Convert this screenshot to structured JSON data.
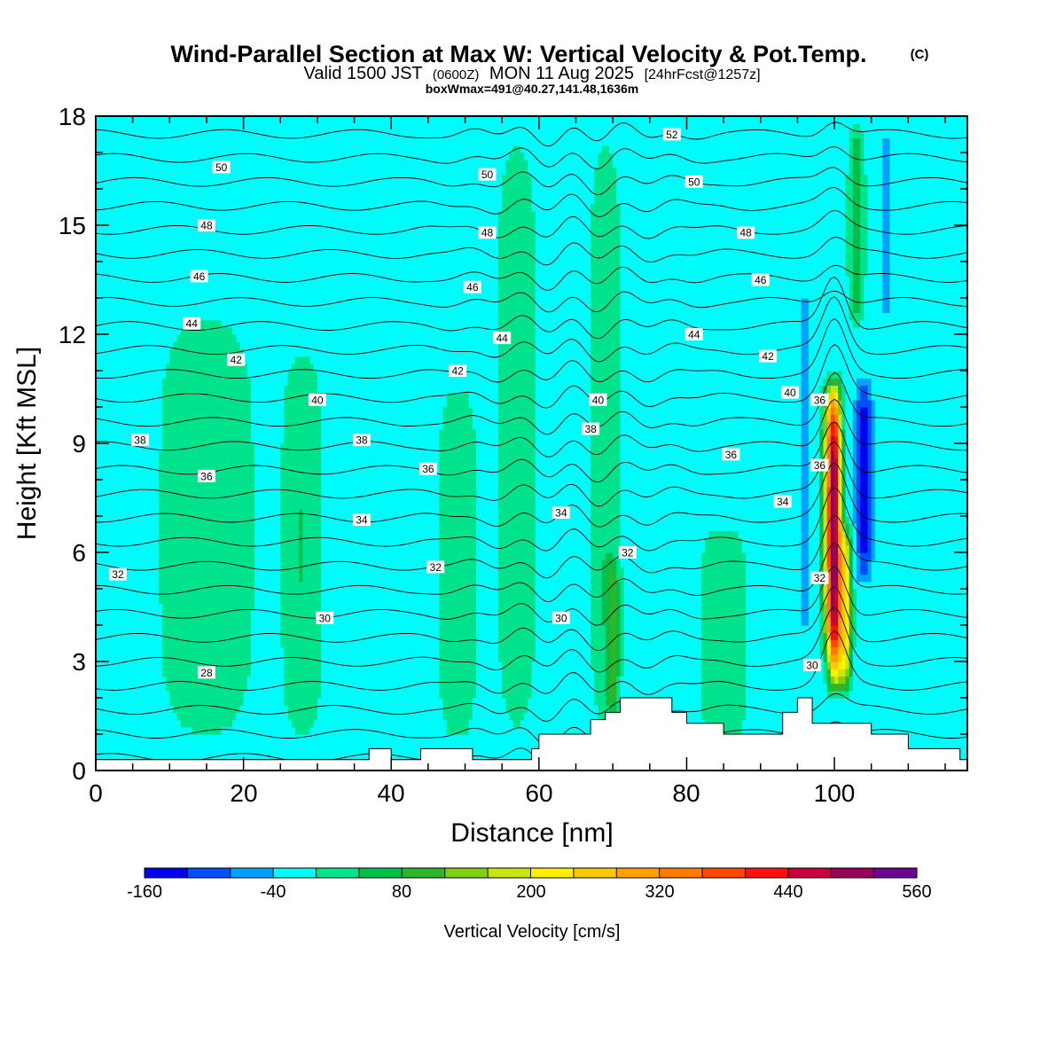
{
  "chart_data": {
    "type": "heatmap",
    "title": "Wind-Parallel Section at Max W: Vertical Velocity & Pot.Temp.",
    "title_mark": "(C)",
    "subtitle_main": "Valid 1500 JST",
    "subtitle_z": "(0600Z)",
    "subtitle_date": "MON 11 Aug 2025",
    "subtitle_fcst": "[24hrFcst@1257z]",
    "subtitle2": "boxWmax=491@40.27,141.48,1636m",
    "xlabel": "Distance [nm]",
    "ylabel": "Height [Kft MSL]",
    "xlim": [
      0,
      118
    ],
    "ylim": [
      0,
      18
    ],
    "x_ticks": [
      "0",
      "20",
      "40",
      "60",
      "80",
      "100"
    ],
    "y_ticks": [
      "0",
      "3",
      "6",
      "9",
      "12",
      "15",
      "18"
    ],
    "colorbar": {
      "label": "Vertical Velocity [cm/s]",
      "tick_labels": [
        "-160",
        "-40",
        "80",
        "200",
        "320",
        "440",
        "560"
      ],
      "min": -160,
      "max": 560,
      "step": 40,
      "colors": [
        "#0000f0",
        "#0050f5",
        "#00a0ff",
        "#00fbfb",
        "#00e38d",
        "#00c04a",
        "#2db62a",
        "#80d010",
        "#c8e610",
        "#fff000",
        "#ffc800",
        "#ffa000",
        "#ff7a00",
        "#ff4800",
        "#ff1010",
        "#c8003c",
        "#96005a",
        "#6e0094"
      ]
    },
    "background_value": -20,
    "w_features": [
      {
        "x": 15,
        "z0": 0.4,
        "z1": 13,
        "w": 40,
        "half_width": 6
      },
      {
        "x": 28,
        "z0": 0.4,
        "z1": 12,
        "w": 40,
        "half_width": 2.5
      },
      {
        "x": 49,
        "z0": 0.4,
        "z1": 11,
        "w": 40,
        "half_width": 2.5
      },
      {
        "x": 57,
        "z0": 0.4,
        "z1": 18,
        "w": 40,
        "half_width": 2.5
      },
      {
        "x": 69,
        "z0": 0.4,
        "z1": 18,
        "w": 40,
        "half_width": 2
      },
      {
        "x": 70,
        "z0": 1,
        "z1": 6,
        "w": 80,
        "half_width": 0.8
      },
      {
        "x": 85,
        "z0": 0.4,
        "z1": 7,
        "w": 40,
        "half_width": 3
      },
      {
        "x": 96,
        "z0": 3,
        "z1": 14,
        "w": -60,
        "half_width": 0.8
      },
      {
        "x": 99,
        "z0": 3,
        "z1": 11,
        "w": 120,
        "half_width": 0.8
      },
      {
        "x": 100,
        "z0": 2,
        "z1": 11,
        "w": 490,
        "half_width": 0.9
      },
      {
        "x": 101.5,
        "z0": 2,
        "z1": 7,
        "w": 220,
        "half_width": 0.8
      },
      {
        "x": 104,
        "z0": 5,
        "z1": 11,
        "w": -160,
        "half_width": 1
      },
      {
        "x": 107,
        "z0": 12,
        "z1": 18,
        "w": -60,
        "half_width": 0.8
      },
      {
        "x": 103,
        "z0": 12,
        "z1": 18,
        "w": 80,
        "half_width": 1
      }
    ],
    "terrain_x": [
      0,
      37,
      37,
      40,
      40,
      44,
      44,
      45,
      45,
      51,
      51,
      59,
      59,
      60,
      60,
      67,
      67,
      69,
      69,
      71,
      71,
      73,
      73,
      78,
      78,
      80,
      80,
      85,
      85,
      93,
      93,
      95,
      95,
      97,
      97,
      102,
      102,
      105,
      105,
      110,
      110,
      117,
      117,
      118
    ],
    "terrain_z": [
      0.3,
      0.3,
      0.6,
      0.6,
      0.3,
      0.3,
      0.6,
      0.6,
      0.6,
      0.6,
      0.3,
      0.3,
      0.6,
      0.6,
      1.0,
      1.0,
      1.4,
      1.4,
      1.6,
      1.6,
      2.0,
      2.0,
      2.0,
      2.0,
      1.6,
      1.6,
      1.3,
      1.3,
      1.0,
      1.0,
      1.6,
      1.6,
      2.0,
      2.0,
      1.3,
      1.3,
      1.3,
      1.3,
      1.0,
      1.0,
      0.6,
      0.6,
      0.3,
      0.3
    ],
    "theta_levels": [
      26,
      27,
      28,
      29,
      30,
      31,
      32,
      33,
      34,
      35,
      36,
      37,
      38,
      39,
      40,
      41,
      42,
      43,
      44,
      45,
      46,
      47,
      48,
      49,
      50,
      51,
      52
    ],
    "theta_labels": [
      {
        "text": "50",
        "x": 17,
        "z": 16.6
      },
      {
        "text": "48",
        "x": 15,
        "z": 15.0
      },
      {
        "text": "46",
        "x": 14,
        "z": 13.6
      },
      {
        "text": "44",
        "x": 13,
        "z": 12.3
      },
      {
        "text": "42",
        "x": 19,
        "z": 11.3
      },
      {
        "text": "40",
        "x": 30,
        "z": 10.2
      },
      {
        "text": "38",
        "x": 6,
        "z": 9.1
      },
      {
        "text": "38",
        "x": 36,
        "z": 9.1
      },
      {
        "text": "36",
        "x": 15,
        "z": 8.1
      },
      {
        "text": "36",
        "x": 45,
        "z": 8.3
      },
      {
        "text": "34",
        "x": 36,
        "z": 6.9
      },
      {
        "text": "32",
        "x": 3,
        "z": 5.4
      },
      {
        "text": "32",
        "x": 46,
        "z": 5.6
      },
      {
        "text": "30",
        "x": 31,
        "z": 4.2
      },
      {
        "text": "30",
        "x": 63,
        "z": 4.2
      },
      {
        "text": "28",
        "x": 15,
        "z": 2.7
      },
      {
        "text": "50",
        "x": 53,
        "z": 16.4
      },
      {
        "text": "48",
        "x": 53,
        "z": 14.8
      },
      {
        "text": "46",
        "x": 51,
        "z": 13.3
      },
      {
        "text": "44",
        "x": 55,
        "z": 11.9
      },
      {
        "text": "42",
        "x": 49,
        "z": 11.0
      },
      {
        "text": "40",
        "x": 68,
        "z": 10.2
      },
      {
        "text": "38",
        "x": 67,
        "z": 9.4
      },
      {
        "text": "34",
        "x": 63,
        "z": 7.1
      },
      {
        "text": "32",
        "x": 72,
        "z": 6.0
      },
      {
        "text": "52",
        "x": 78,
        "z": 17.5
      },
      {
        "text": "50",
        "x": 81,
        "z": 16.2
      },
      {
        "text": "48",
        "x": 88,
        "z": 14.8
      },
      {
        "text": "46",
        "x": 90,
        "z": 13.5
      },
      {
        "text": "44",
        "x": 81,
        "z": 12.0
      },
      {
        "text": "42",
        "x": 91,
        "z": 11.4
      },
      {
        "text": "40",
        "x": 94,
        "z": 10.4
      },
      {
        "text": "36",
        "x": 86,
        "z": 8.7
      },
      {
        "text": "34",
        "x": 93,
        "z": 7.4
      },
      {
        "text": "36",
        "x": 98,
        "z": 10.2
      },
      {
        "text": "36",
        "x": 98,
        "z": 8.4
      },
      {
        "text": "32",
        "x": 98,
        "z": 5.3
      },
      {
        "text": "30",
        "x": 97,
        "z": 2.9
      }
    ]
  }
}
